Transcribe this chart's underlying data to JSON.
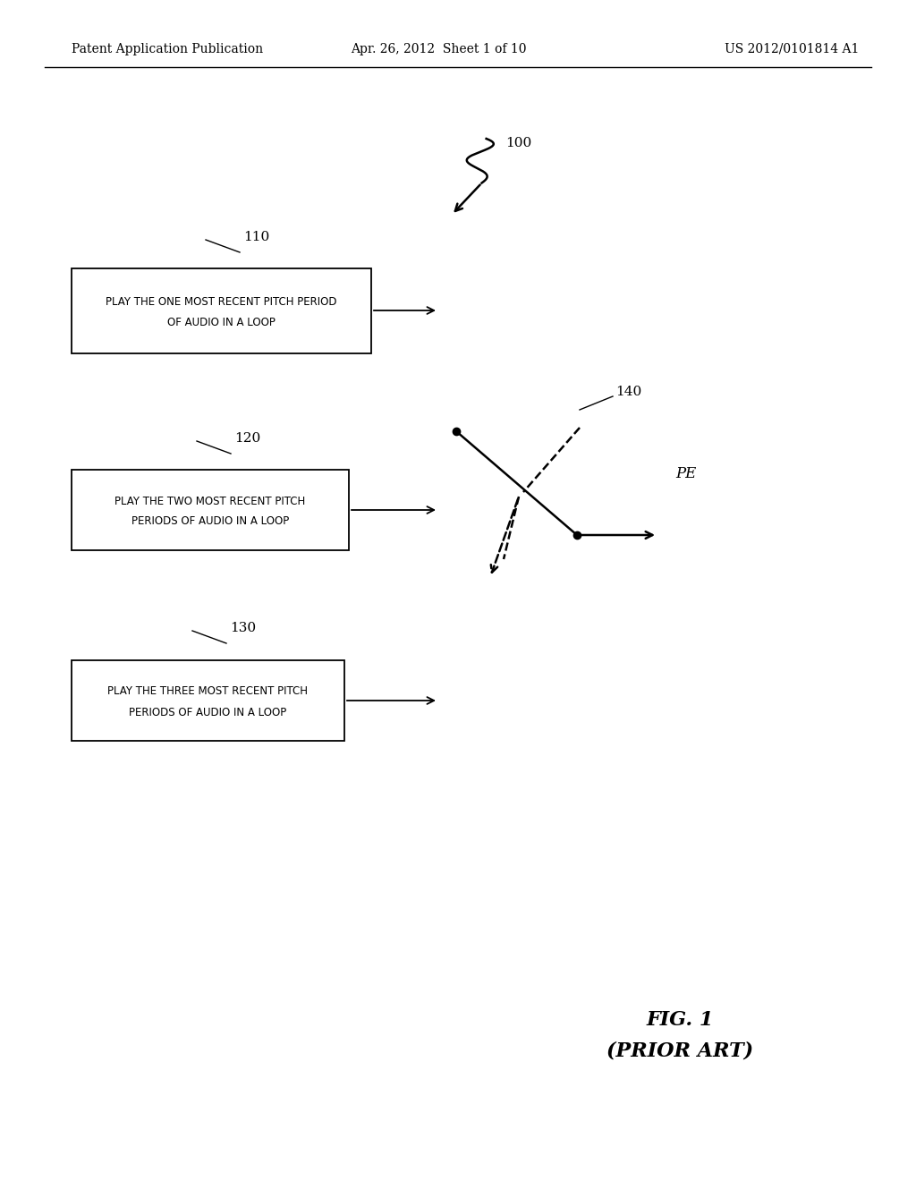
{
  "bg_color": "#ffffff",
  "text_color": "#000000",
  "header_left": "Patent Application Publication",
  "header_center": "Apr. 26, 2012  Sheet 1 of 10",
  "header_right": "US 2012/0101814 A1",
  "fig_label": "FIG. 1",
  "fig_sublabel": "(PRIOR ART)",
  "label_100": "100",
  "label_110": "110",
  "label_120": "120",
  "label_130": "130",
  "label_140": "140",
  "label_pe": "PE",
  "box1_line1": "PLAY THE ONE MOST RECENT PITCH PERIOD",
  "box1_line2": "OF AUDIO IN A LOOP",
  "box2_line1": "PLAY THE TWO MOST RECENT PITCH",
  "box2_line2": "PERIODS OF AUDIO IN A LOOP",
  "box3_line1": "PLAY THE THREE MOST RECENT PITCH",
  "box3_line2": "PERIODS OF AUDIO IN A LOOP"
}
